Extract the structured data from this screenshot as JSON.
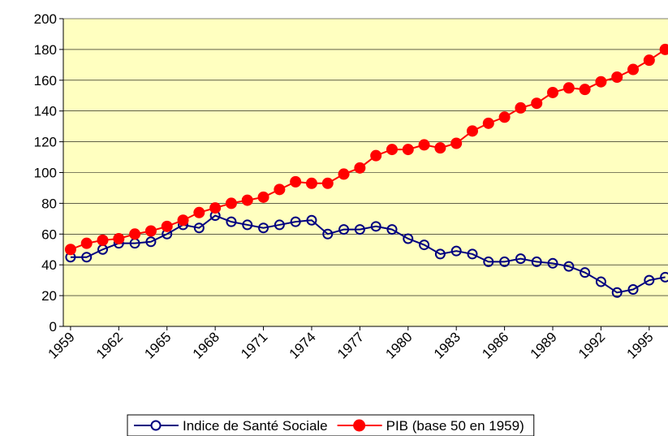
{
  "chart_data": {
    "type": "line",
    "x": [
      1959,
      1960,
      1961,
      1962,
      1963,
      1964,
      1965,
      1966,
      1967,
      1968,
      1969,
      1970,
      1971,
      1972,
      1973,
      1974,
      1975,
      1976,
      1977,
      1978,
      1979,
      1980,
      1981,
      1982,
      1983,
      1984,
      1985,
      1986,
      1987,
      1988,
      1989,
      1990,
      1991,
      1992,
      1993,
      1994,
      1995,
      1996
    ],
    "series": [
      {
        "name": "Indice de Santé Sociale",
        "color": "#000080",
        "marker": "open-circle",
        "values": [
          45,
          45,
          50,
          54,
          54,
          55,
          60,
          66,
          64,
          72,
          68,
          66,
          64,
          66,
          68,
          69,
          60,
          63,
          63,
          65,
          63,
          57,
          53,
          47,
          49,
          47,
          42,
          42,
          44,
          42,
          41,
          39,
          35,
          29,
          22,
          24,
          30,
          32
        ]
      },
      {
        "name": "PIB (base 50 en 1959)",
        "color": "#ff0000",
        "marker": "filled-circle",
        "values": [
          50,
          54,
          56,
          57,
          60,
          62,
          65,
          69,
          74,
          77,
          80,
          82,
          84,
          89,
          94,
          93,
          93,
          99,
          103,
          111,
          115,
          115,
          118,
          116,
          119,
          127,
          132,
          136,
          142,
          145,
          152,
          155,
          154,
          159,
          162,
          167,
          173,
          180
        ]
      }
    ],
    "xlim": [
      1958.55,
      1996.17
    ],
    "xticks": [
      1959,
      1962,
      1965,
      1968,
      1971,
      1974,
      1977,
      1980,
      1983,
      1986,
      1989,
      1992,
      1995
    ],
    "ylim": [
      0,
      200
    ],
    "yticks": [
      0,
      20,
      40,
      60,
      80,
      100,
      120,
      140,
      160,
      180,
      200
    ],
    "grid": true,
    "legend": "bottom",
    "plot_background": "#ffffc0"
  }
}
